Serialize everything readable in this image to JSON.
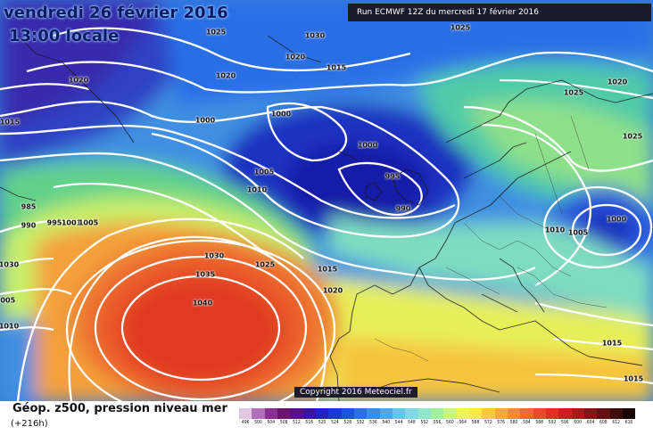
{
  "title": {
    "date": "vendredi 26 février 2016",
    "time": "13:00 locale"
  },
  "run_info": "Run ECMWF 12Z du mercredi 17 février 2016",
  "copyright": "Copyright 2016 Meteociel.fr",
  "footer": {
    "title": "Géop. z500, pression niveau mer",
    "subtitle": "(+216h)"
  },
  "isobar_labels": [
    {
      "text": "1025"
    },
    {
      "text": "1030"
    },
    {
      "text": "1025"
    },
    {
      "text": "1020"
    },
    {
      "text": "1015"
    },
    {
      "text": "1020"
    },
    {
      "text": "1020"
    },
    {
      "text": "1025"
    },
    {
      "text": "1020"
    },
    {
      "text": "1015"
    },
    {
      "text": "1000"
    },
    {
      "text": "1000"
    },
    {
      "text": "1000"
    },
    {
      "text": "1025"
    },
    {
      "text": "1005"
    },
    {
      "text": "995"
    },
    {
      "text": "1010"
    },
    {
      "text": "990"
    },
    {
      "text": "985"
    },
    {
      "text": "990"
    },
    {
      "text": "995"
    },
    {
      "text": "1001"
    },
    {
      "text": "1005"
    },
    {
      "text": "1010"
    },
    {
      "text": "1005"
    },
    {
      "text": "1000"
    },
    {
      "text": "1030"
    },
    {
      "text": "1025"
    },
    {
      "text": "1035"
    },
    {
      "text": "1015"
    },
    {
      "text": "1020"
    },
    {
      "text": "1040"
    },
    {
      "text": "1015"
    },
    {
      "text": "1015"
    },
    {
      "text": "1030"
    },
    {
      "text": "1005"
    },
    {
      "text": "1010"
    }
  ],
  "scale": {
    "labels": [
      "496",
      "500",
      "504",
      "508",
      "512",
      "516",
      "520",
      "524",
      "528",
      "532",
      "536",
      "540",
      "544",
      "548",
      "552",
      "556",
      "560",
      "564",
      "568",
      "572",
      "576",
      "580",
      "584",
      "588",
      "592",
      "596",
      "600",
      "604",
      "608",
      "612",
      "616"
    ],
    "colors": [
      "#e0c8e0",
      "#b070b8",
      "#8a2f8f",
      "#6b136e",
      "#5a0e8a",
      "#3a14a8",
      "#2222c8",
      "#1a3ad8",
      "#1a55e0",
      "#2a70e6",
      "#3a8cea",
      "#4ea8ee",
      "#66c4ee",
      "#7fd8e6",
      "#8fe6c8",
      "#9ff0a0",
      "#c8f77a",
      "#eef55a",
      "#fde84a",
      "#fdc83c",
      "#fca83a",
      "#f88a34",
      "#f06a2e",
      "#e84a2a",
      "#e03024",
      "#cc2020",
      "#aa1818",
      "#861414",
      "#621010",
      "#3e0a0a",
      "#1a0505"
    ]
  }
}
